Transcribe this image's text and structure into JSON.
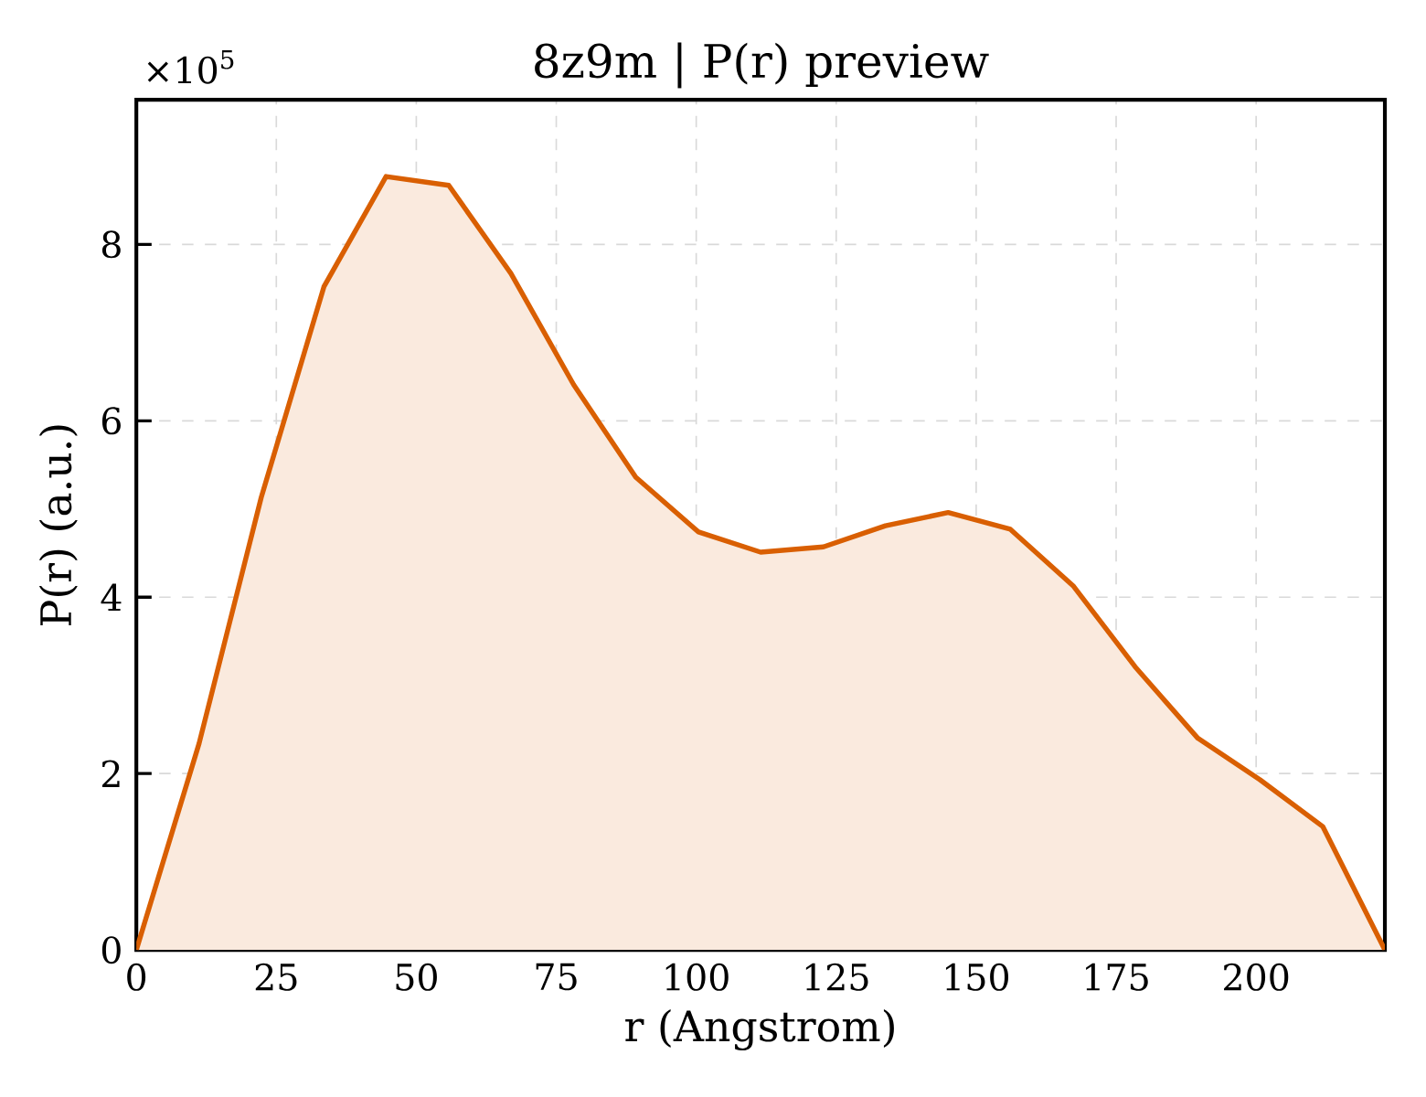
{
  "chart_data": {
    "type": "area",
    "title": "8z9m | P(r) preview",
    "xlabel": "r (Angstrom)",
    "ylabel": "P(r) (a.u.)",
    "annotations": [
      "×10$^{5}$"
    ],
    "x": [
      0,
      11.2,
      22.3,
      33.5,
      44.6,
      55.8,
      66.9,
      78.1,
      89.2,
      100.4,
      111.5,
      122.7,
      133.8,
      145.0,
      156.1,
      167.3,
      178.4,
      189.6,
      200.7,
      211.9,
      223
    ],
    "series": [
      {
        "color": "#d95f02",
        "values": [
          0,
          2.34,
          5.13,
          7.52,
          8.77,
          8.67,
          7.67,
          6.41,
          5.36,
          4.74,
          4.51,
          4.57,
          4.81,
          4.96,
          4.77,
          4.13,
          3.21,
          2.4,
          1.93,
          1.4,
          0
        ]
      }
    ],
    "xlim": [
      0,
      223
    ],
    "ylim": [
      0,
      9.64
    ],
    "xticks": [
      0,
      25,
      50,
      75,
      100,
      125,
      150,
      175,
      200
    ],
    "yticks": [
      0,
      2,
      4,
      6,
      8
    ],
    "grid": true
  }
}
